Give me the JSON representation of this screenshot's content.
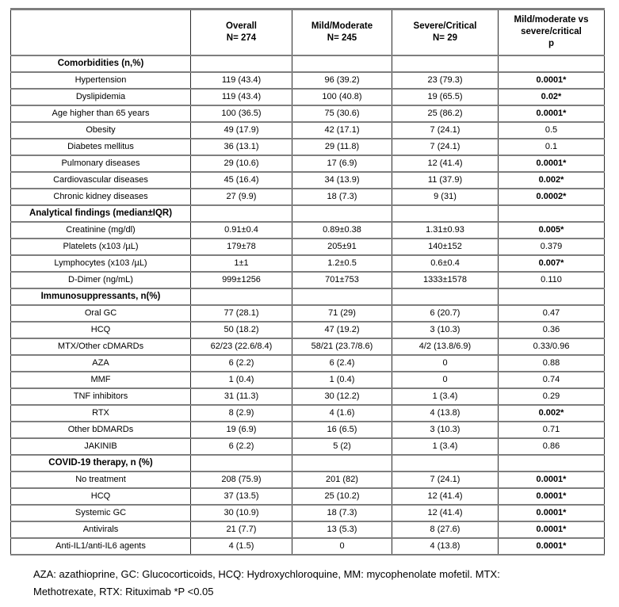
{
  "table": {
    "header": {
      "overall": {
        "label": "Overall",
        "n": "N= 274"
      },
      "mild": {
        "label": "Mild/Moderate",
        "n": "N= 245"
      },
      "severe": {
        "label": "Severe/Critical",
        "n": "N= 29"
      },
      "p": {
        "line1": "Mild/moderate vs",
        "line2": "severe/critical",
        "line3": "p"
      }
    },
    "rows": [
      {
        "type": "section",
        "label": "Comorbidities (n,%)"
      },
      {
        "type": "data",
        "label": "Hypertension",
        "values": [
          "119 (43.4)",
          "96 (39.2)",
          "23 (79.3)",
          "0.0001*"
        ]
      },
      {
        "type": "data",
        "label": "Dyslipidemia",
        "values": [
          "119 (43.4)",
          "100 (40.8)",
          "19 (65.5)",
          "0.02*"
        ]
      },
      {
        "type": "data",
        "label": "Age higher than 65 years",
        "values": [
          "100 (36.5)",
          "75 (30.6)",
          "25 (86.2)",
          "0.0001*"
        ]
      },
      {
        "type": "data",
        "label": "Obesity",
        "values": [
          "49 (17.9)",
          "42 (17.1)",
          "7 (24.1)",
          "0.5"
        ]
      },
      {
        "type": "data",
        "label": "Diabetes mellitus",
        "values": [
          "36 (13.1)",
          "29 (11.8)",
          "7 (24.1)",
          "0.1"
        ]
      },
      {
        "type": "data",
        "label": "Pulmonary diseases",
        "values": [
          "29 (10.6)",
          "17 (6.9)",
          "12 (41.4)",
          "0.0001*"
        ]
      },
      {
        "type": "data",
        "label": "Cardiovascular diseases",
        "values": [
          "45 (16.4)",
          "34 (13.9)",
          "11 (37.9)",
          "0.002*"
        ]
      },
      {
        "type": "data",
        "label": "Chronic kidney diseases",
        "values": [
          "27 (9.9)",
          "18 (7.3)",
          "9 (31)",
          "0.0002*"
        ]
      },
      {
        "type": "section",
        "label": "Analytical findings (median±IQR)"
      },
      {
        "type": "data",
        "label": "Creatinine (mg/dl)",
        "values": [
          "0.91±0.4",
          "0.89±0.38",
          "1.31±0.93",
          "0.005*"
        ]
      },
      {
        "type": "data",
        "label": "Platelets (x103 /µL)",
        "values": [
          "179±78",
          "205±91",
          "140±152",
          "0.379"
        ]
      },
      {
        "type": "data",
        "label": "Lymphocytes (x103 /µL)",
        "values": [
          "1±1",
          "1.2±0.5",
          "0.6±0.4",
          "0.007*"
        ]
      },
      {
        "type": "data",
        "label": "D-Dimer (ng/mL)",
        "values": [
          "999±1256",
          "701±753",
          "1333±1578",
          "0.110"
        ]
      },
      {
        "type": "section",
        "label": "Immunosuppressants, n(%)"
      },
      {
        "type": "data",
        "label": "Oral GC",
        "values": [
          "77 (28.1)",
          "71 (29)",
          "6 (20.7)",
          "0.47"
        ]
      },
      {
        "type": "data",
        "label": "HCQ",
        "values": [
          "50 (18.2)",
          "47 (19.2)",
          "3 (10.3)",
          "0.36"
        ]
      },
      {
        "type": "data",
        "label": "MTX/Other cDMARDs",
        "values": [
          "62/23 (22.6/8.4)",
          "58/21 (23.7/8.6)",
          "4/2 (13.8/6.9)",
          "0.33/0.96"
        ]
      },
      {
        "type": "data",
        "label": "AZA",
        "values": [
          "6 (2.2)",
          "6 (2.4)",
          "0",
          "0.88"
        ]
      },
      {
        "type": "data",
        "label": "MMF",
        "values": [
          "1 (0.4)",
          "1 (0.4)",
          "0",
          "0.74"
        ]
      },
      {
        "type": "data",
        "label": "TNF inhibitors",
        "values": [
          "31 (11.3)",
          "30 (12.2)",
          "1 (3.4)",
          "0.29"
        ]
      },
      {
        "type": "data",
        "label": "RTX",
        "values": [
          "8 (2.9)",
          "4 (1.6)",
          "4 (13.8)",
          "0.002*"
        ]
      },
      {
        "type": "data",
        "label": "Other bDMARDs",
        "values": [
          "19 (6.9)",
          "16 (6.5)",
          "3 (10.3)",
          "0.71"
        ]
      },
      {
        "type": "data",
        "label": "JAKINIB",
        "values": [
          "6 (2.2)",
          "5 (2)",
          "1 (3.4)",
          "0.86"
        ]
      },
      {
        "type": "section",
        "label": "COVID-19 therapy, n (%)"
      },
      {
        "type": "data",
        "label": "No treatment",
        "values": [
          "208 (75.9)",
          "201 (82)",
          "7 (24.1)",
          "0.0001*"
        ]
      },
      {
        "type": "data",
        "label": "HCQ",
        "values": [
          "37 (13.5)",
          "25 (10.2)",
          "12 (41.4)",
          "0.0001*"
        ]
      },
      {
        "type": "data",
        "label": "Systemic GC",
        "values": [
          "30 (10.9)",
          "18 (7.3)",
          "12 (41.4)",
          "0.0001*"
        ]
      },
      {
        "type": "data",
        "label": "Antivirals",
        "values": [
          "21 (7.7)",
          "13 (5.3)",
          "8 (27.6)",
          "0.0001*"
        ]
      },
      {
        "type": "data",
        "label": "Anti-IL1/anti-IL6 agents",
        "values": [
          "4 (1.5)",
          "0",
          "4 (13.8)",
          "0.0001*"
        ]
      }
    ]
  },
  "footnote": {
    "line1": "AZA: azathioprine,  GC: Glucocorticoids, HCQ: Hydroxychloroquine, MM: mycophenolate mofetil.  MTX:",
    "line2": "Methotrexate, RTX: Rituximab  *P <0.05"
  }
}
